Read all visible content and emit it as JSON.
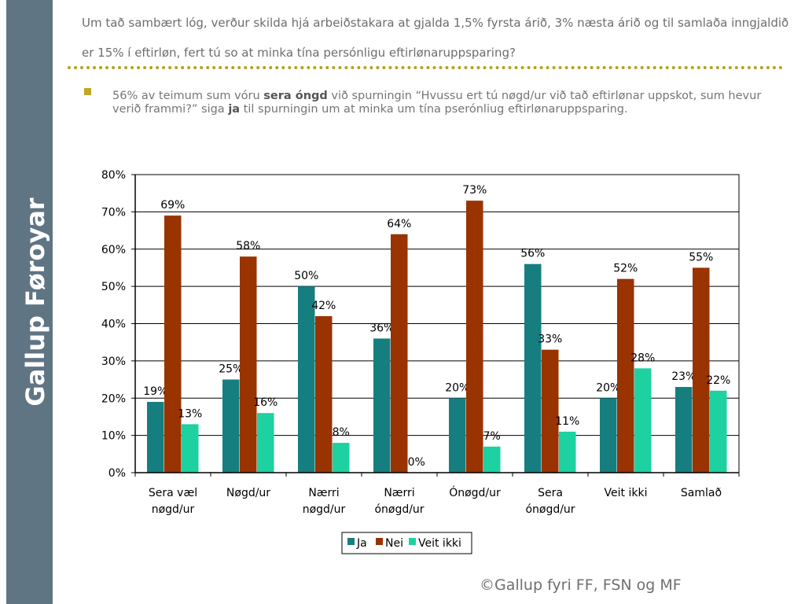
{
  "sidebar": {
    "brand": "Gallup Føroyar"
  },
  "header": {
    "question": "Um tað sambært lóg, verður skilda hjá arbeiðstakara at gjalda 1,5% fyrsta árið, 3% næsta árið og til samlaða inngjaldið er 15% í eftirløn, fert tú so at minka tína persónligu eftirlønaruppsparing?"
  },
  "bullet": {
    "t1": "56% av teimum sum vóru ",
    "b1": "sera óngd",
    "t2": " við spurningin “Hvussu ert tú nøgd/ur við tað eftirlønar uppskot, sum hevur verið frammi?” siga ",
    "b2": "ja",
    "t3": " til spurningin um at minka um tína pserónliug eftirlønaruppsparing."
  },
  "footer": {
    "copyright": "©Gallup fyri FF, FSN og MF"
  },
  "chart_data": {
    "type": "bar",
    "categories": [
      [
        "Sera væl",
        "nøgd/ur"
      ],
      [
        "Nøgd/ur"
      ],
      [
        "Nærri",
        "nøgd/ur"
      ],
      [
        "Nærri",
        "ónøgd/ur"
      ],
      [
        "Ónøgd/ur"
      ],
      [
        "Sera",
        "ónøgd/ur"
      ],
      [
        "Veit ikki"
      ],
      [
        "Samlað"
      ]
    ],
    "series": [
      {
        "name": "Ja",
        "color": "#167e7f",
        "values": [
          19,
          25,
          50,
          36,
          20,
          56,
          20,
          23
        ]
      },
      {
        "name": "Nei",
        "color": "#993300",
        "values": [
          69,
          58,
          42,
          64,
          73,
          33,
          52,
          55
        ]
      },
      {
        "name": "Veit ikki",
        "color": "#1dd1a1",
        "values": [
          13,
          16,
          8,
          0,
          7,
          11,
          28,
          22
        ]
      }
    ],
    "ylim": [
      0,
      80
    ],
    "yticks": [
      "0%",
      "10%",
      "20%",
      "30%",
      "40%",
      "50%",
      "60%",
      "70%",
      "80%"
    ],
    "value_suffix": "%",
    "grid": true,
    "legend_position": "bottom"
  }
}
